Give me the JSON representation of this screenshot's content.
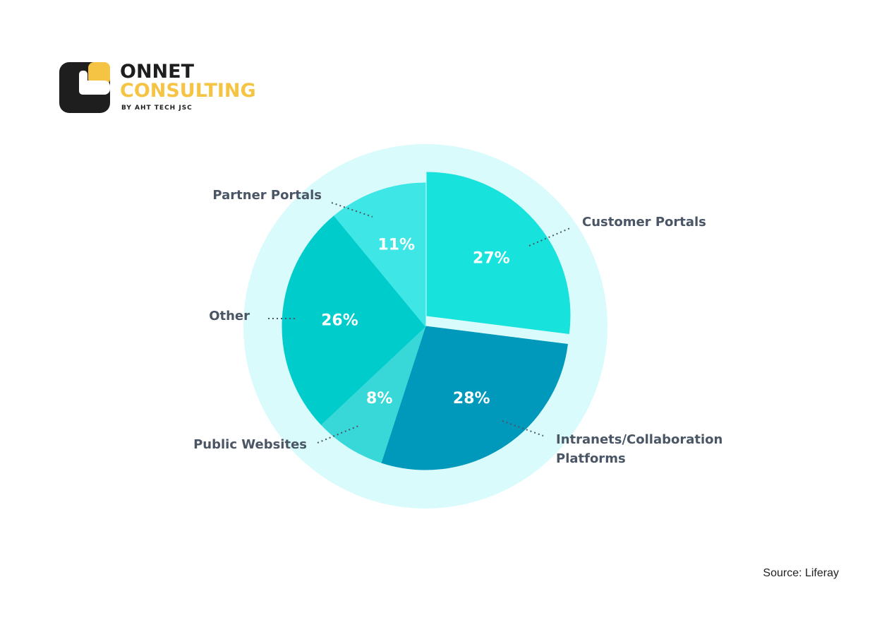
{
  "logo": {
    "line1": "ONNET",
    "line2": "CONSULTING",
    "line3": "BY AHT TECH JSC"
  },
  "chart_data": {
    "type": "pie",
    "categories": [
      "Customer Portals",
      "Intranets/Collaboration Platforms",
      "Public Websites",
      "Other",
      "Partner Portals"
    ],
    "values": [
      27,
      28,
      8,
      26,
      11
    ],
    "value_labels": [
      "27%",
      "28%",
      "8%",
      "26%",
      "11%"
    ],
    "colors": [
      "#17e3dc",
      "#0098bb",
      "#38d8d8",
      "#00cccc",
      "#3ee6e6"
    ],
    "source": "Source: Liferay"
  }
}
